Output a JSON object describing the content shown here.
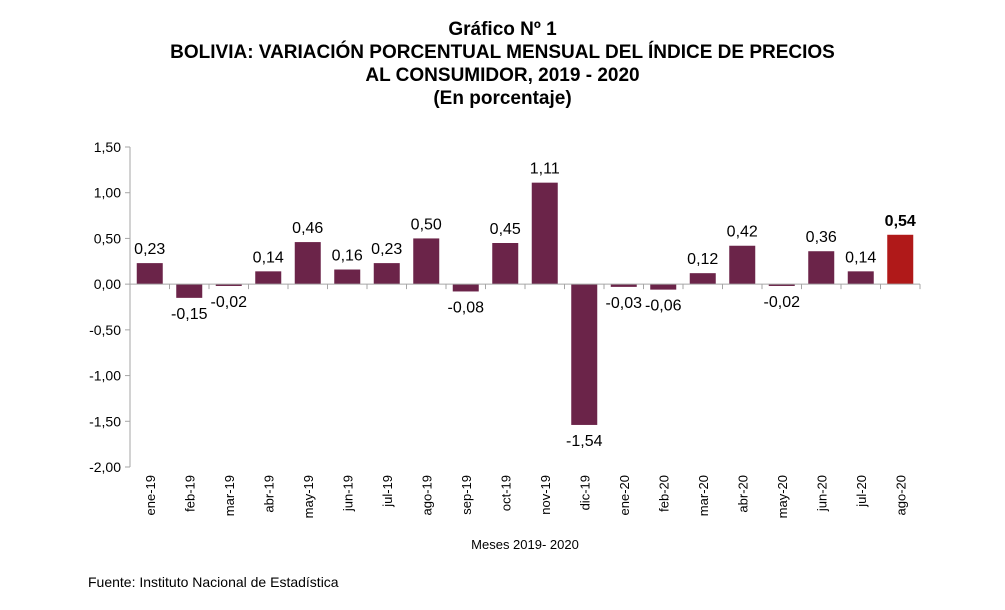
{
  "title_lines": [
    "Gráfico Nº 1",
    "BOLIVIA: VARIACIÓN PORCENTUAL MENSUAL DEL ÍNDICE DE PRECIOS",
    "AL CONSUMIDOR, 2019 - 2020",
    "(En porcentaje)"
  ],
  "source": "Fuente: Instituto Nacional de Estadística",
  "colors": {
    "bar": "#6b2449",
    "highlight": "#b01919",
    "axis": "#a6a6a6"
  },
  "chart_data": {
    "type": "bar",
    "categories": [
      "ene-19",
      "feb-19",
      "mar-19",
      "abr-19",
      "may-19",
      "jun-19",
      "jul-19",
      "ago-19",
      "sep-19",
      "oct-19",
      "nov-19",
      "dic-19",
      "ene-20",
      "feb-20",
      "mar-20",
      "abr-20",
      "may-20",
      "jun-20",
      "jul-20",
      "ago-20"
    ],
    "values": [
      0.23,
      -0.15,
      -0.02,
      0.14,
      0.46,
      0.16,
      0.23,
      0.5,
      -0.08,
      0.45,
      1.11,
      -1.54,
      -0.03,
      -0.06,
      0.12,
      0.42,
      -0.02,
      0.36,
      0.14,
      0.54
    ],
    "data_labels": [
      "0,23",
      "-0,15",
      "-0,02",
      "0,14",
      "0,46",
      "0,16",
      "0,23",
      "0,50",
      "-0,08",
      "0,45",
      "1,11",
      "-1,54",
      "-0,03",
      "-0,06",
      "0,12",
      "0,42",
      "-0,02",
      "0,36",
      "0,14",
      "0,54"
    ],
    "highlight_index": 19,
    "xlabel": "Meses 2019- 2020",
    "ylabel": "",
    "ylim": [
      -2.0,
      1.5
    ],
    "yticks": [
      1.5,
      1.0,
      0.5,
      0.0,
      -0.5,
      -1.0,
      -1.5,
      -2.0
    ],
    "ytick_labels": [
      "1,50",
      "1,00",
      "0,50",
      "0,00",
      "-0,50",
      "-1,00",
      "-1,50",
      "-2,00"
    ],
    "grid": false,
    "legend": "none"
  }
}
